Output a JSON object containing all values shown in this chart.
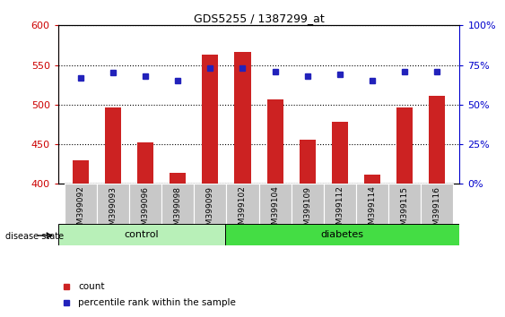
{
  "title": "GDS5255 / 1387299_at",
  "samples": [
    "GSM399092",
    "GSM399093",
    "GSM399096",
    "GSM399098",
    "GSM399099",
    "GSM399102",
    "GSM399104",
    "GSM399109",
    "GSM399112",
    "GSM399114",
    "GSM399115",
    "GSM399116"
  ],
  "counts": [
    430,
    496,
    452,
    414,
    563,
    567,
    507,
    456,
    478,
    412,
    496,
    511
  ],
  "percentiles": [
    67,
    70,
    68,
    65,
    73,
    73,
    71,
    68,
    69,
    65,
    71,
    71
  ],
  "ylim_left": [
    400,
    600
  ],
  "ylim_right": [
    0,
    100
  ],
  "yticks_left": [
    400,
    450,
    500,
    550,
    600
  ],
  "yticks_right": [
    0,
    25,
    50,
    75,
    100
  ],
  "control_count": 5,
  "diabetes_count": 7,
  "bar_color": "#cc2222",
  "dot_color": "#2222bb",
  "control_color": "#b8f0b8",
  "diabetes_color": "#44dd44",
  "left_axis_color": "#cc0000",
  "right_axis_color": "#0000cc",
  "grid_color": "#000000",
  "bar_width": 0.5,
  "xtick_bg": "#c8c8c8"
}
